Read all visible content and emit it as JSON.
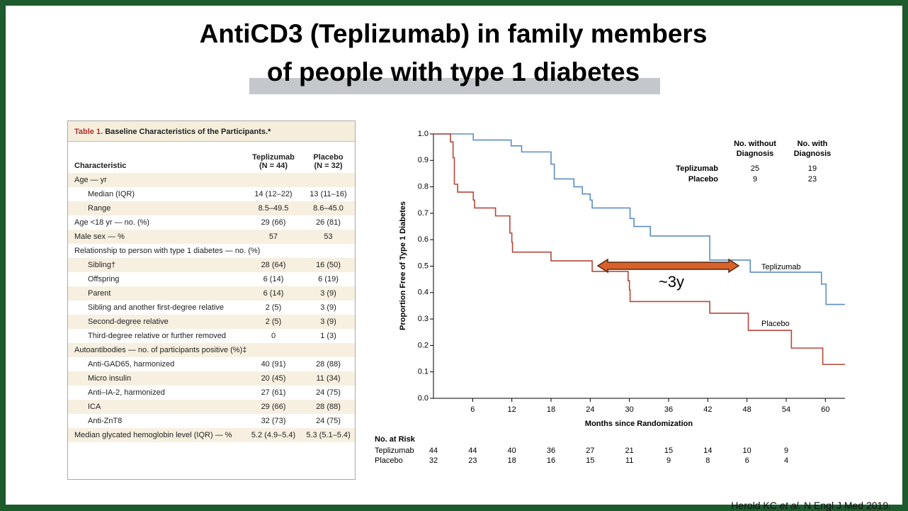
{
  "title": [
    "AntiCD3 (Teplizumab) in family members",
    "of people with type 1 diabetes"
  ],
  "table": {
    "label": "Table 1.",
    "caption": "Baseline Characteristics of the Participants.*",
    "columns": [
      "Characteristic",
      [
        "Teplizumab",
        "(N = 44)"
      ],
      [
        "Placebo",
        "(N = 32)"
      ]
    ],
    "rows": [
      {
        "label": "Age — yr",
        "rows": [
          [
            "Median (IQR)",
            "14 (12–22)",
            "13 (11–16)"
          ],
          [
            "Range",
            "8.5–49.5",
            "8.6–45.0"
          ]
        ]
      },
      [
        "Age <18 yr — no. (%)",
        "29 (66)",
        "26 (81)"
      ],
      [
        "Male sex — %",
        "57",
        "53"
      ],
      {
        "label": "Relationship to person with type 1 diabetes — no. (%)",
        "rows": [
          [
            "Sibling†",
            "28 (64)",
            "16 (50)"
          ],
          [
            "Offspring",
            "6 (14)",
            "6 (19)"
          ],
          [
            "Parent",
            "6 (14)",
            "3 (9)"
          ],
          [
            "Sibling and another first-degree relative",
            "2 (5)",
            "3 (9)"
          ],
          [
            "Second-degree relative",
            "2 (5)",
            "3 (9)"
          ],
          [
            "Third-degree relative or further removed",
            "0",
            "1 (3)"
          ]
        ]
      },
      {
        "label": "Autoantibodies — no. of participants positive (%)‡",
        "rows": [
          [
            "Anti-GAD65, harmonized",
            "40 (91)",
            "28 (88)"
          ],
          [
            "Micro insulin",
            "20 (45)",
            "11 (34)"
          ],
          [
            "Anti–IA-2, harmonized",
            "27 (61)",
            "24 (75)"
          ],
          [
            "ICA",
            "29 (66)",
            "28 (88)"
          ],
          [
            "Anti-ZnT8",
            "32 (73)",
            "24 (75)"
          ]
        ]
      },
      [
        "Median glycated hemoglobin level (IQR) — %",
        "5.2 (4.9–5.4)",
        "5.3 (5.1–5.4)"
      ]
    ]
  },
  "chart_data": {
    "type": "step",
    "x_label": "Months since Randomization",
    "y_label": "Proportion Free of Type 1 Diabetes",
    "xlim": [
      0,
      63
    ],
    "ylim": [
      0,
      1
    ],
    "xticks": [
      6,
      12,
      18,
      24,
      30,
      36,
      42,
      48,
      54,
      60
    ],
    "yticks": [
      {
        "value": 0,
        "label": "0.0"
      },
      0.1,
      0.2,
      0.3,
      0.4,
      0.5,
      0.6,
      0.7,
      0.8,
      0.9,
      {
        "value": 1,
        "label": "1.0"
      }
    ],
    "series": [
      {
        "name": "Teplizumab",
        "color": "#5b8ec0",
        "x": [
          0,
          6.1,
          11.9,
          13.5,
          18.0,
          18.5,
          21.5,
          22.8,
          24.0,
          24.3,
          30.1,
          30.7,
          33.2,
          42.3,
          48.5,
          59.4,
          60.1,
          63
        ],
        "values": [
          1.0,
          0.977,
          0.955,
          0.932,
          0.886,
          0.83,
          0.8,
          0.773,
          0.75,
          0.72,
          0.68,
          0.65,
          0.614,
          0.523,
          0.477,
          0.432,
          0.355,
          0.355
        ]
      },
      {
        "name": "Placebo",
        "color": "#b5473a",
        "x": [
          0,
          2.6,
          3.0,
          3.2,
          3.7,
          6.1,
          6.3,
          9.5,
          11.7,
          12.0,
          12.1,
          18.0,
          24.3,
          29.8,
          30.0,
          30.1,
          42.3,
          48.2,
          54.8,
          59.6,
          63
        ],
        "values": [
          1.0,
          0.97,
          0.91,
          0.81,
          0.78,
          0.75,
          0.72,
          0.69,
          0.625,
          0.59,
          0.553,
          0.52,
          0.48,
          0.445,
          0.41,
          0.366,
          0.322,
          0.257,
          0.19,
          0.128,
          0.128
        ]
      }
    ],
    "diagnosis_table": {
      "columns": [
        [
          "No. without",
          "Diagnosis"
        ],
        [
          "No. with",
          "Diagnosis"
        ]
      ],
      "rows": [
        [
          25,
          19
        ],
        [
          9,
          23
        ]
      ]
    },
    "risk_table": {
      "title": "No. at Risk",
      "months": [
        0,
        6,
        12,
        18,
        24,
        30,
        36,
        42,
        48,
        54
      ],
      "rows": [
        [
          44,
          44,
          40,
          36,
          27,
          21,
          15,
          14,
          10,
          9
        ],
        [
          32,
          23,
          18,
          16,
          15,
          11,
          9,
          8,
          6,
          4
        ]
      ]
    },
    "annotation": "~3y"
  },
  "citation": {
    "authors": "Herold KC",
    "etal": "et al.",
    "journal": "N Engl J Med 2019."
  }
}
